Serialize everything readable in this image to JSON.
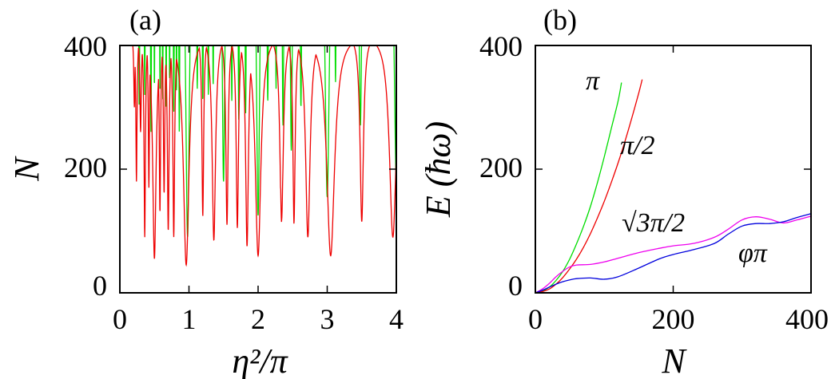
{
  "chart_data": [
    {
      "panel": "(a)",
      "type": "line",
      "xlabel": "η²/π",
      "ylabel": "N",
      "xlim": [
        0,
        4
      ],
      "ylim": [
        0,
        400
      ],
      "xticks": [
        "0",
        "1",
        "2",
        "3",
        "4"
      ],
      "yticks": [
        "0",
        "200",
        "400"
      ],
      "series": [
        {
          "name": "green",
          "color": "#00dd00",
          "base": 700,
          "dips": [
            [
              0.28,
              300,
              0.012
            ],
            [
              0.36,
              320,
              0.01
            ],
            [
              0.45,
              260,
              0.01
            ],
            [
              0.5,
              330,
              0.008
            ],
            [
              0.58,
              330,
              0.008
            ],
            [
              0.62,
              310,
              0.008
            ],
            [
              0.67,
              300,
              0.008
            ],
            [
              0.72,
              340,
              0.008
            ],
            [
              0.78,
              290,
              0.01
            ],
            [
              0.82,
              320,
              0.008
            ],
            [
              0.86,
              260,
              0.01
            ],
            [
              0.98,
              90,
              0.035
            ],
            [
              1.12,
              330,
              0.012
            ],
            [
              1.2,
              310,
              0.012
            ],
            [
              1.28,
              320,
              0.01
            ],
            [
              1.35,
              335,
              0.01
            ],
            [
              1.5,
              180,
              0.025
            ],
            [
              1.62,
              310,
              0.012
            ],
            [
              1.72,
              280,
              0.012
            ],
            [
              1.82,
              290,
              0.012
            ],
            [
              2.0,
              125,
              0.03
            ],
            [
              2.14,
              310,
              0.015
            ],
            [
              2.26,
              330,
              0.01
            ],
            [
              2.36,
              270,
              0.015
            ],
            [
              2.48,
              230,
              0.02
            ],
            [
              2.62,
              300,
              0.015
            ],
            [
              3.0,
              155,
              0.04
            ],
            [
              3.12,
              340,
              0.012
            ],
            [
              3.48,
              270,
              0.025
            ],
            [
              4.0,
              180,
              0.04
            ]
          ]
        },
        {
          "name": "red",
          "color": "#ee0000",
          "base": 420,
          "dips": [
            [
              0.21,
              300,
              0.01
            ],
            [
              0.24,
              180,
              0.01
            ],
            [
              0.3,
              260,
              0.012
            ],
            [
              0.36,
              90,
              0.012
            ],
            [
              0.42,
              170,
              0.01
            ],
            [
              0.5,
              55,
              0.03
            ],
            [
              0.58,
              130,
              0.012
            ],
            [
              0.64,
              160,
              0.012
            ],
            [
              0.7,
              100,
              0.015
            ],
            [
              0.78,
              90,
              0.015
            ],
            [
              0.96,
              45,
              0.05
            ],
            [
              1.2,
              120,
              0.015
            ],
            [
              1.36,
              85,
              0.03
            ],
            [
              1.55,
              110,
              0.02
            ],
            [
              1.7,
              100,
              0.02
            ],
            [
              1.84,
              75,
              0.025
            ],
            [
              2.0,
              60,
              0.05
            ],
            [
              2.34,
              105,
              0.03
            ],
            [
              2.52,
              110,
              0.02
            ],
            [
              2.72,
              90,
              0.04
            ],
            [
              3.05,
              60,
              0.07
            ],
            [
              3.5,
              115,
              0.03
            ],
            [
              3.95,
              90,
              0.06
            ]
          ],
          "peaks": [
            [
              1.12,
              120,
              0.015
            ],
            [
              1.25,
              140,
              0.015
            ],
            [
              1.45,
              150,
              0.02
            ],
            [
              1.62,
              160,
              0.015
            ],
            [
              1.75,
              160,
              0.015
            ],
            [
              2.3,
              170,
              0.015
            ],
            [
              2.4,
              190,
              0.015
            ],
            [
              2.6,
              205,
              0.02
            ],
            [
              3.36,
              225,
              0.025
            ],
            [
              3.62,
              210,
              0.025
            ]
          ]
        }
      ]
    },
    {
      "panel": "(b)",
      "type": "line",
      "xlabel": "N",
      "ylabel": "E (ħω)",
      "xlim": [
        0,
        400
      ],
      "ylim": [
        0,
        400
      ],
      "xticks": [
        "0",
        "200",
        "400"
      ],
      "yticks": [
        "0",
        "200",
        "400"
      ],
      "series": [
        {
          "name": "π",
          "color": "#00dd00",
          "x": [
            0,
            10,
            20,
            30,
            40,
            50,
            60,
            70,
            80,
            90,
            100,
            110,
            120,
            125
          ],
          "y": [
            0,
            3,
            9,
            20,
            35,
            55,
            80,
            108,
            140,
            178,
            220,
            265,
            310,
            340
          ]
        },
        {
          "name": "π/2",
          "color": "#ee0000",
          "x": [
            0,
            10,
            20,
            30,
            40,
            50,
            60,
            70,
            80,
            90,
            100,
            110,
            120,
            130,
            140,
            150,
            155
          ],
          "y": [
            0,
            2,
            6,
            14,
            25,
            39,
            55,
            74,
            96,
            121,
            148,
            178,
            210,
            245,
            283,
            323,
            345
          ]
        },
        {
          "name": "√3π/2",
          "color": "#ee00ee",
          "x": [
            0,
            10,
            20,
            30,
            40,
            50,
            60,
            80,
            100,
            120,
            150,
            180,
            200,
            230,
            260,
            280,
            300,
            320,
            340,
            360,
            380,
            400
          ],
          "y": [
            0,
            6,
            15,
            26,
            35,
            42,
            45,
            46,
            50,
            56,
            65,
            72,
            76,
            80,
            90,
            103,
            118,
            123,
            119,
            113,
            118,
            124
          ]
        },
        {
          "name": "φπ",
          "color": "#0000dd",
          "x": [
            0,
            10,
            20,
            30,
            40,
            50,
            60,
            80,
            100,
            120,
            150,
            180,
            200,
            230,
            260,
            280,
            300,
            320,
            340,
            360,
            380,
            400
          ],
          "y": [
            0,
            4,
            9,
            14,
            18,
            21,
            23,
            24,
            22,
            26,
            40,
            55,
            62,
            70,
            80,
            95,
            108,
            112,
            112,
            115,
            122,
            128
          ]
        }
      ],
      "annotations": [
        "π",
        "π/2",
        "√3π/2",
        "φπ"
      ]
    }
  ]
}
